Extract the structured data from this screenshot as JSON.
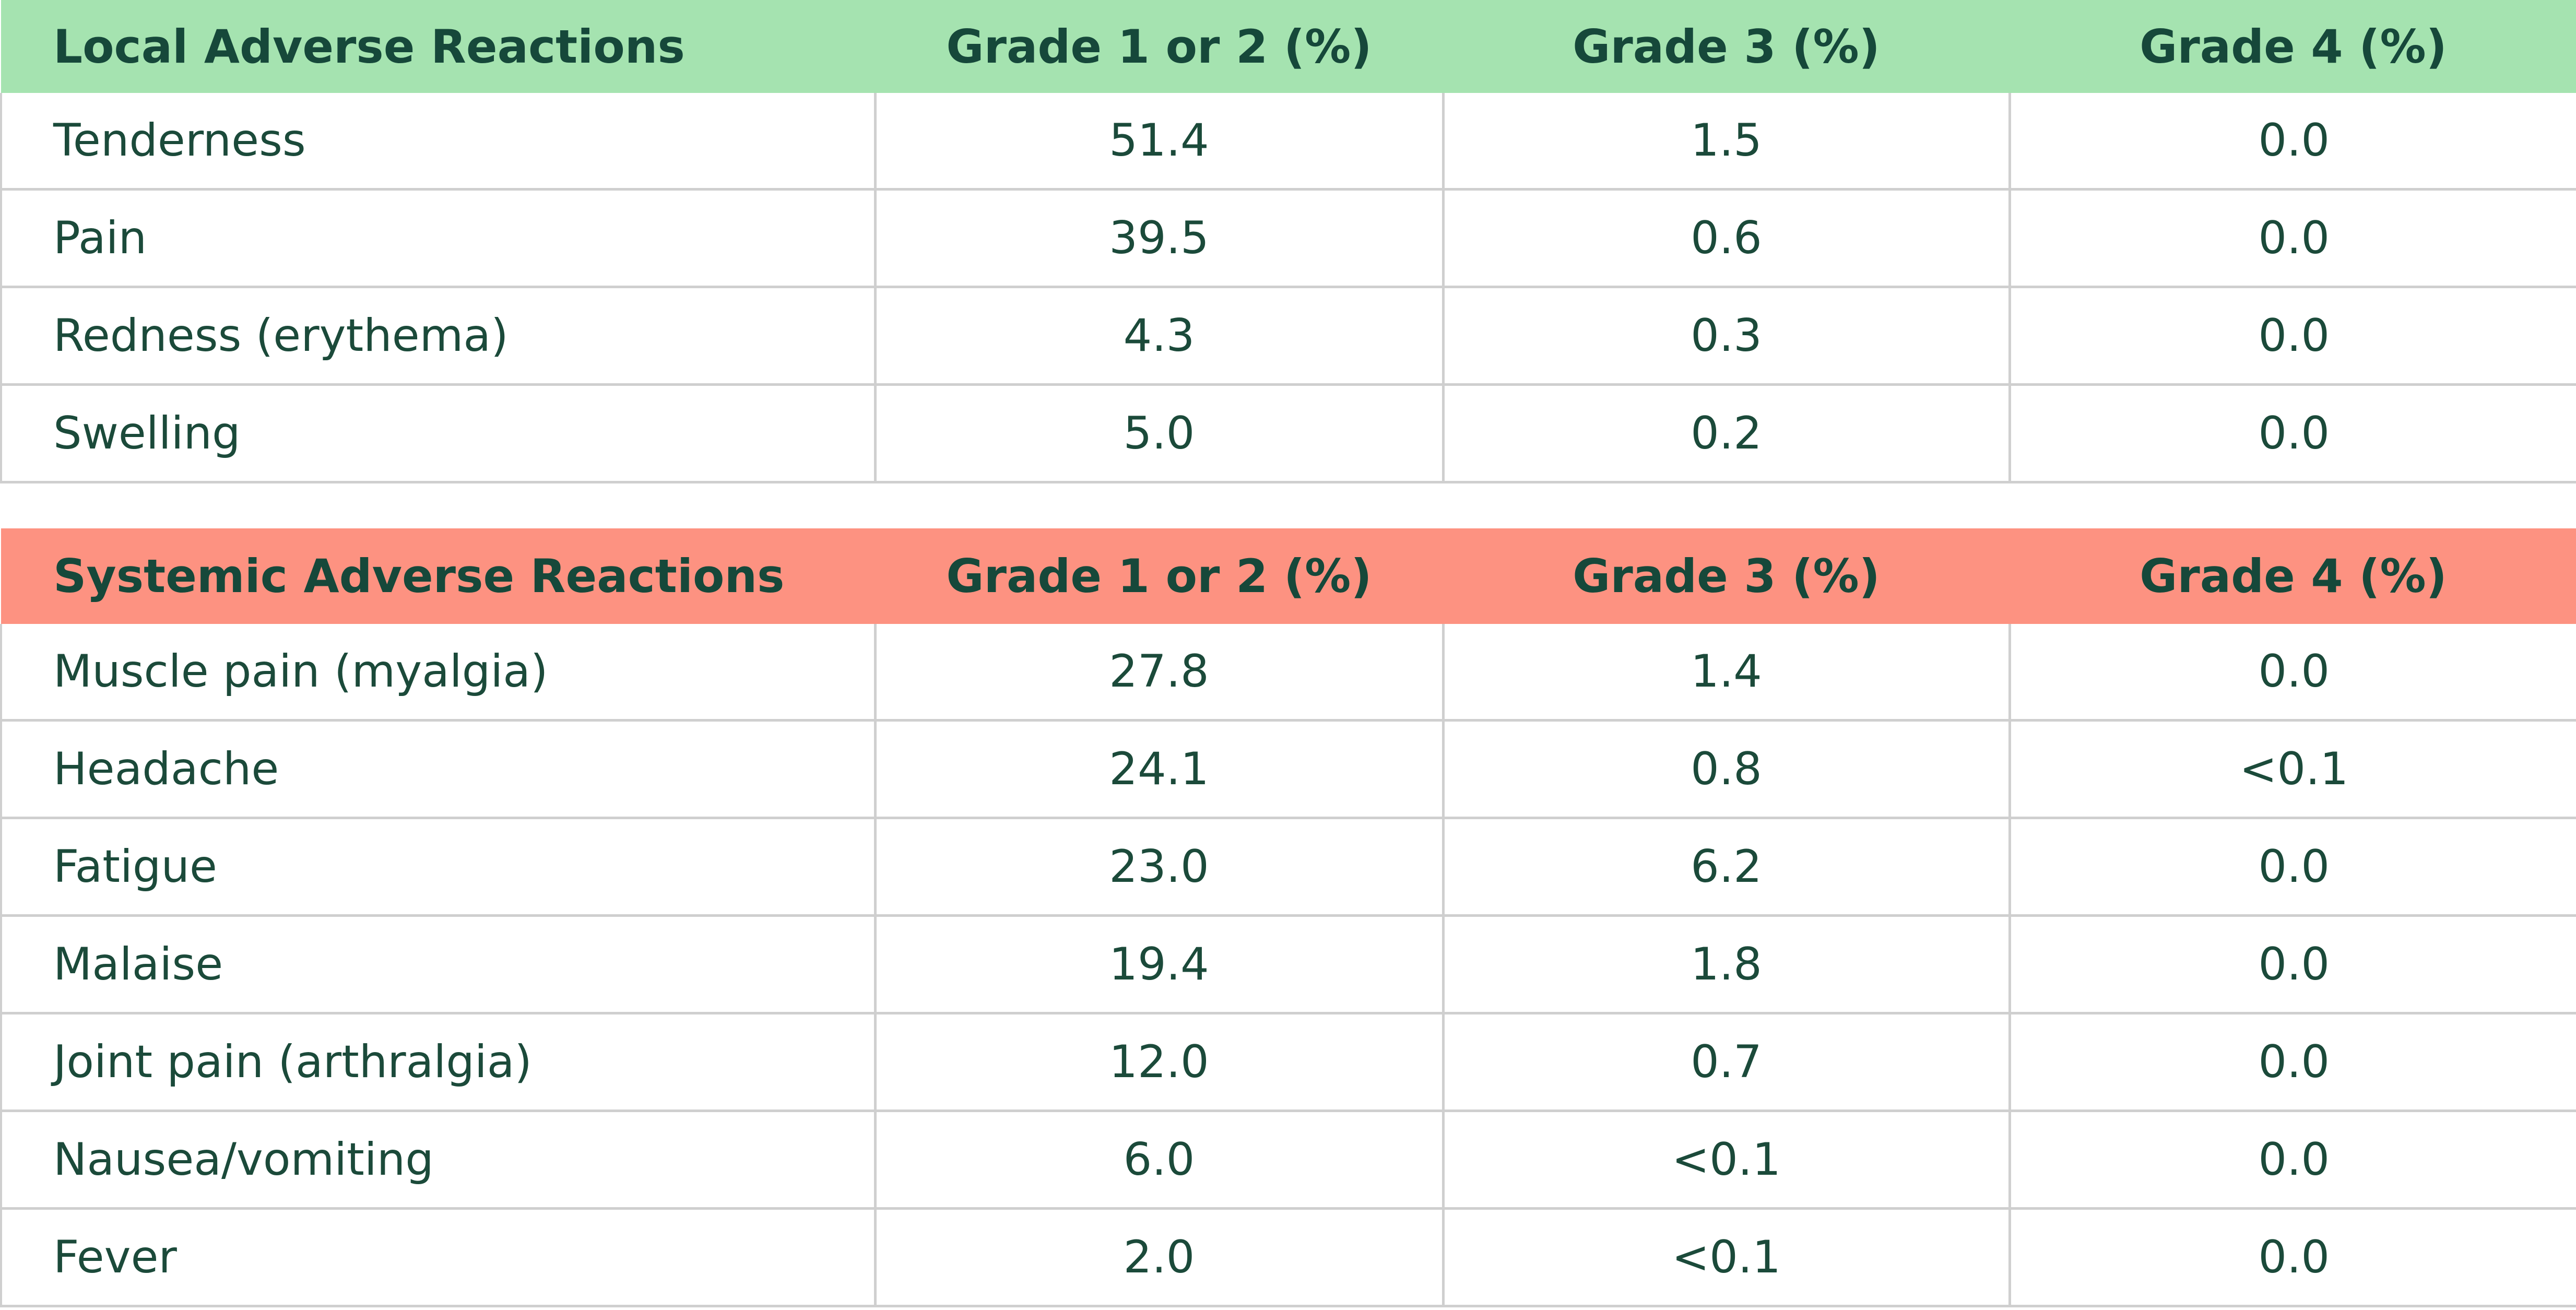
{
  "chart_data": [
    {
      "type": "table",
      "title": "Local Adverse Reactions",
      "header_color": "#a5e3b0",
      "columns": [
        "Local Adverse Reactions",
        "Grade 1 or 2 (%)",
        "Grade 3 (%)",
        "Grade 4 (%)"
      ],
      "rows": [
        [
          "Tenderness",
          "51.4",
          "1.5",
          "0.0"
        ],
        [
          "Pain",
          "39.5",
          "0.6",
          "0.0"
        ],
        [
          "Redness (erythema)",
          "4.3",
          "0.3",
          "0.0"
        ],
        [
          "Swelling",
          "5.0",
          "0.2",
          "0.0"
        ]
      ]
    },
    {
      "type": "table",
      "title": "Systemic Adverse Reactions",
      "header_color": "#fd9281",
      "columns": [
        "Systemic Adverse Reactions",
        "Grade 1 or 2 (%)",
        "Grade 3 (%)",
        "Grade 4 (%)"
      ],
      "rows": [
        [
          "Muscle pain (myalgia)",
          "27.8",
          "1.4",
          "0.0"
        ],
        [
          "Headache",
          "24.1",
          "0.8",
          "<0.1"
        ],
        [
          "Fatigue",
          "23.0",
          "6.2",
          "0.0"
        ],
        [
          "Malaise",
          "19.4",
          "1.8",
          "0.0"
        ],
        [
          "Joint pain (arthralgia)",
          "12.0",
          "0.7",
          "0.0"
        ],
        [
          "Nausea/vomiting",
          "6.0",
          "<0.1",
          "0.0"
        ],
        [
          "Fever",
          "2.0",
          "<0.1",
          "0.0"
        ]
      ]
    }
  ]
}
